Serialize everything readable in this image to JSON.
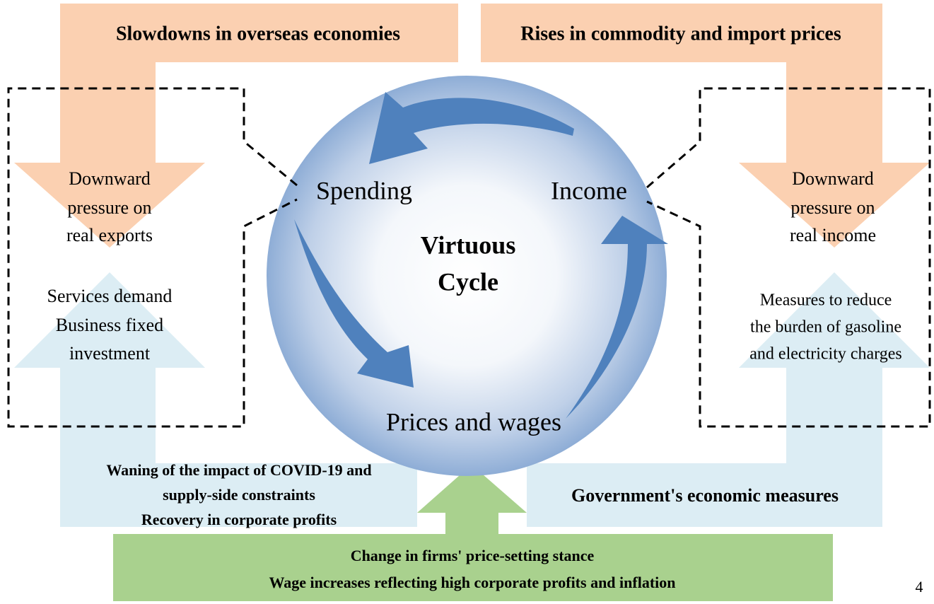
{
  "headers": {
    "left": "Slowdowns in overseas economies",
    "right": "Rises in commodity and import prices"
  },
  "cycle": {
    "title": [
      "Virtuous",
      "Cycle"
    ],
    "nodes": [
      "Spending",
      "Income",
      "Prices and wages"
    ]
  },
  "left_panel": {
    "pressure": [
      "Downward",
      "pressure on",
      "real exports"
    ],
    "support": [
      "Services demand",
      "Business fixed",
      "investment"
    ]
  },
  "right_panel": {
    "pressure": [
      "Downward",
      "pressure on",
      "real income"
    ],
    "support": [
      "Measures to reduce",
      "the burden of gasoline",
      "and electricity charges"
    ]
  },
  "bottom_left": [
    "Waning of the impact of COVID-19 and",
    "supply-side constraints",
    "Recovery in corporate profits"
  ],
  "bottom_right": "Government's economic measures",
  "bottom_center": [
    "Change in firms' price-setting stance",
    "Wage increases reflecting high corporate profits and inflation"
  ],
  "page_number": "4"
}
